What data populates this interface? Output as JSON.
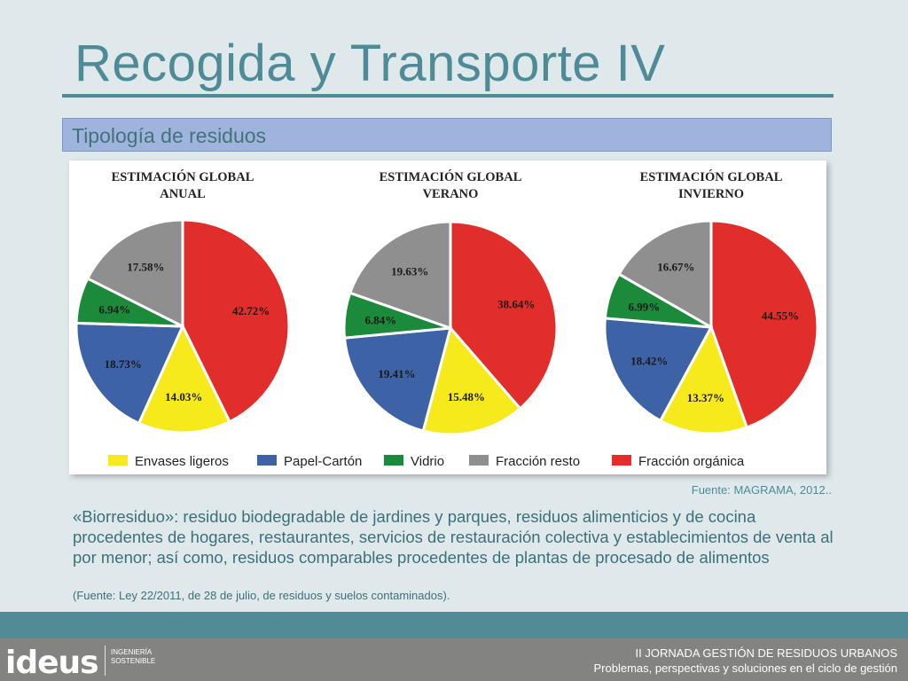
{
  "slide": {
    "title": "Recogida y Transporte IV",
    "subtitle": "Tipología de residuos",
    "source": "Fuente: MAGRAMA, 2012..",
    "definition": "«Biorresiduo»: residuo biodegradable de jardines y parques, residuos alimenticios y de cocina procedentes de hogares, restaurantes, servicios de restauración colectiva y establecimientos de venta al por menor; así como, residuos comparables procedentes de plantas de procesado de alimentos",
    "definition_ref": "(Fuente: Ley 22/2011, de 28 de julio, de residuos y suelos contaminados).",
    "footer_line1": "II JORNADA GESTIÓN DE RESIDUOS URBANOS",
    "footer_line2": "Problemas, perspectivas y soluciones en el ciclo de gestión",
    "logo_text": "ideus",
    "logo_tag_line1": "INGENIERÍA",
    "logo_tag_line2": "SOSTENIBLE"
  },
  "colors": {
    "Envases ligeros": "#f6ea1c",
    "Papel-Cartón": "#3d63a6",
    "Vidrio": "#1b8a3a",
    "Fracción resto": "#8f8f8f",
    "Fracción orgánica": "#e12e2a"
  },
  "chart_data": [
    {
      "type": "pie",
      "title_line1": "ESTIMACIÓN GLOBAL",
      "title_line2": "ANUAL",
      "categories": [
        "Fracción orgánica",
        "Envases ligeros",
        "Papel-Cartón",
        "Vidrio",
        "Fracción resto"
      ],
      "values": [
        42.72,
        14.03,
        18.73,
        6.94,
        17.58
      ],
      "labels": [
        "42.72%",
        "14.03%",
        "18.73%",
        "6.94%",
        "17.58%"
      ]
    },
    {
      "type": "pie",
      "title_line1": "ESTIMACIÓN GLOBAL",
      "title_line2": "VERANO",
      "categories": [
        "Fracción orgánica",
        "Envases ligeros",
        "Papel-Cartón",
        "Vidrio",
        "Fracción resto"
      ],
      "values": [
        38.64,
        15.48,
        19.41,
        6.84,
        19.63
      ],
      "labels": [
        "38.64%",
        "15.48%",
        "19.41%",
        "6.84%",
        "19.63%"
      ]
    },
    {
      "type": "pie",
      "title_line1": "ESTIMACIÓN GLOBAL",
      "title_line2": "INVIERNO",
      "categories": [
        "Fracción orgánica",
        "Envases ligeros",
        "Papel-Cartón",
        "Vidrio",
        "Fracción resto"
      ],
      "values": [
        44.55,
        13.37,
        18.42,
        6.99,
        16.67
      ],
      "labels": [
        "44.55%",
        "13.37%",
        "18.42%",
        "6.99%",
        "16.67%"
      ]
    }
  ],
  "legend": [
    "Envases ligeros",
    "Papel-Cartón",
    "Vidrio",
    "Fracción resto",
    "Fracción orgánica"
  ]
}
